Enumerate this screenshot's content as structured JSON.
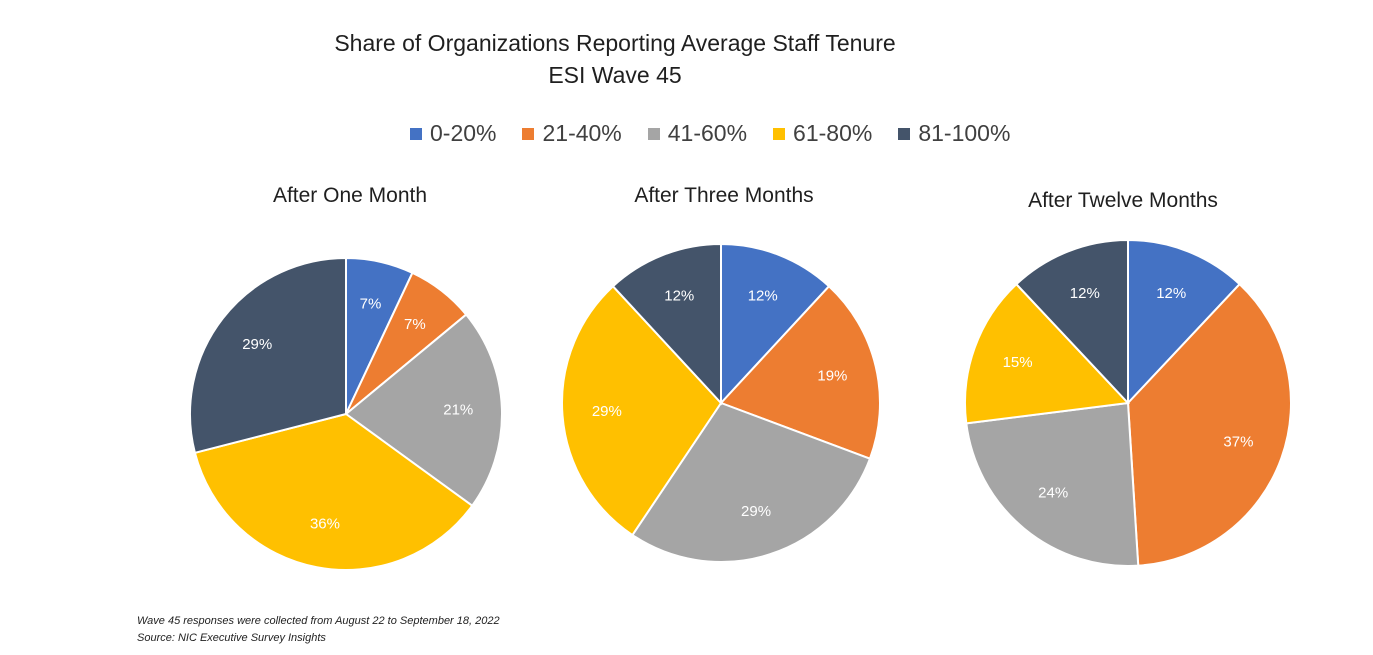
{
  "title_line1": "Share of Organizations Reporting Average Staff Tenure",
  "title_line2": "ESI Wave 45",
  "legend": [
    {
      "label": "0-20%",
      "color": "#4472C4"
    },
    {
      "label": "21-40%",
      "color": "#ED7D31"
    },
    {
      "label": "41-60%",
      "color": "#A5A5A5"
    },
    {
      "label": "61-80%",
      "color": "#FFC000"
    },
    {
      "label": "81-100%",
      "color": "#44546A"
    }
  ],
  "chart_data": [
    {
      "type": "pie",
      "title": "After One Month",
      "categories": [
        "0-20%",
        "21-40%",
        "41-60%",
        "61-80%",
        "81-100%"
      ],
      "values": [
        7,
        7,
        21,
        36,
        29
      ],
      "labels": [
        "7%",
        "7%",
        "21%",
        "36%",
        "29%"
      ]
    },
    {
      "type": "pie",
      "title": "After Three Months",
      "categories": [
        "0-20%",
        "21-40%",
        "41-60%",
        "61-80%",
        "81-100%"
      ],
      "values": [
        12,
        19,
        29,
        29,
        12
      ],
      "labels": [
        "12%",
        "19%",
        "29%",
        "29%",
        "12%"
      ]
    },
    {
      "type": "pie",
      "title": "After Twelve Months",
      "categories": [
        "0-20%",
        "21-40%",
        "41-60%",
        "61-80%",
        "81-100%"
      ],
      "values": [
        12,
        37,
        24,
        15,
        12
      ],
      "labels": [
        "12%",
        "37%",
        "24%",
        "15%",
        "12%"
      ]
    }
  ],
  "footnote_line1": "Wave 45 responses were collected from August 22 to September 18, 2022",
  "footnote_line2": "Source: NIC Executive Survey Insights"
}
